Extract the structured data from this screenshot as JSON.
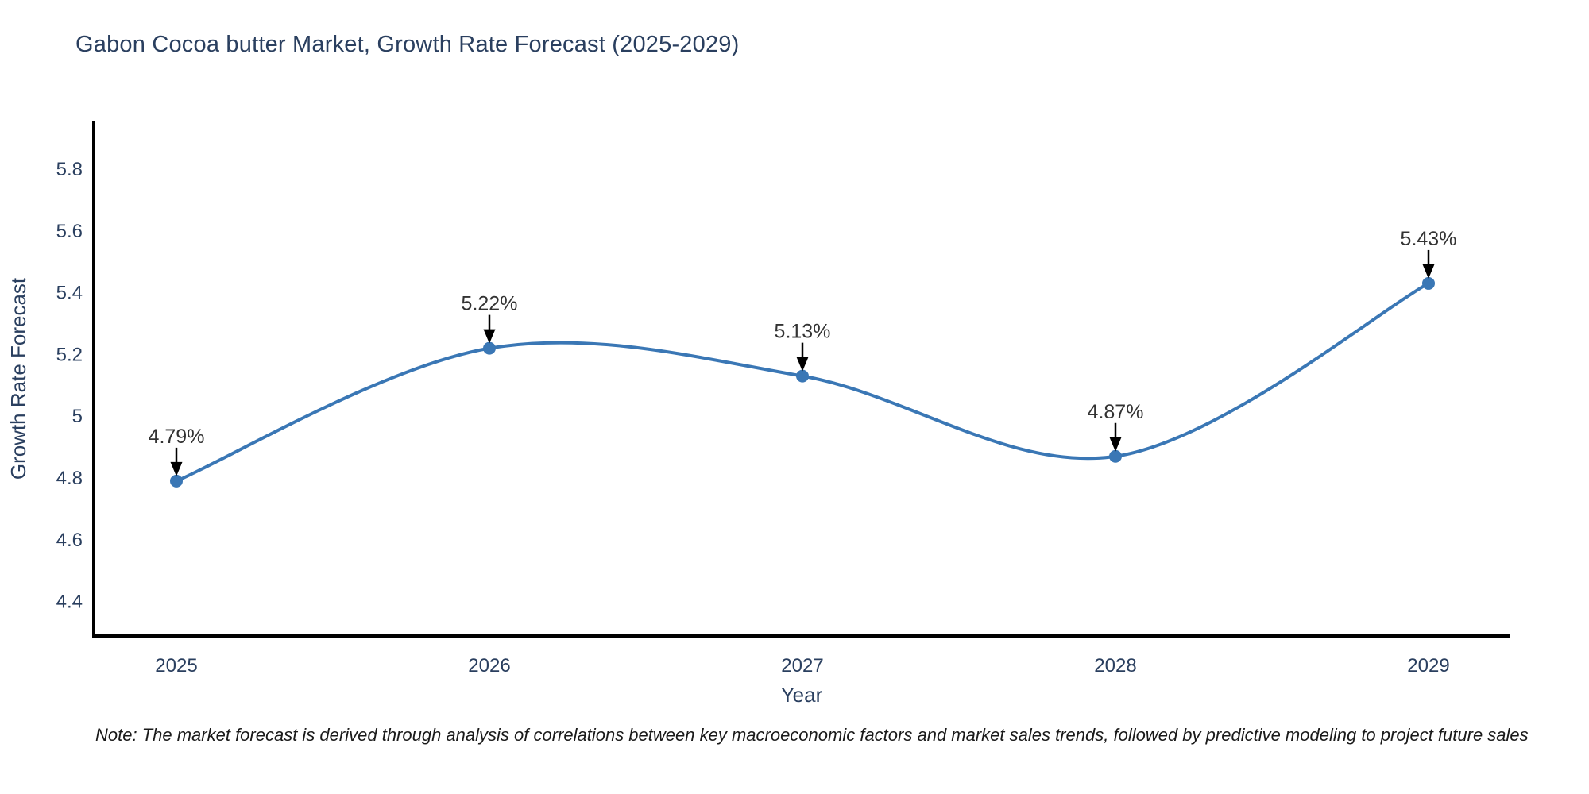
{
  "title": "Gabon Cocoa butter Market, Growth Rate Forecast (2025-2029)",
  "note": "Note: The market forecast is derived through analysis of correlations between key macroeconomic factors and market sales trends, followed by predictive modeling to project future sales",
  "chart_data": {
    "type": "line",
    "title": "Gabon Cocoa butter Market, Growth Rate Forecast (2025-2029)",
    "xlabel": "Year",
    "ylabel": "Growth Rate Forecast",
    "categories": [
      "2025",
      "2026",
      "2027",
      "2028",
      "2029"
    ],
    "series": [
      {
        "name": "Growth Rate Forecast",
        "values": [
          4.79,
          5.22,
          5.13,
          4.87,
          5.43
        ]
      }
    ],
    "point_labels": [
      "4.79%",
      "5.22%",
      "5.13%",
      "4.87%",
      "5.43%"
    ],
    "y_ticks": [
      4.4,
      4.6,
      4.8,
      5,
      5.2,
      5.4,
      5.6,
      5.8
    ],
    "y_tick_labels": [
      "4.4",
      "4.6",
      "4.8",
      "5",
      "5.2",
      "5.4",
      "5.6",
      "5.8"
    ],
    "ylim": [
      4.28,
      5.95
    ],
    "line_shape": "spline",
    "grid": false,
    "legend": "none",
    "colors": {
      "line": "#3a77b5",
      "marker": "#3a77b5",
      "axis_line": "#000000",
      "axis_text": "#2a3f5f",
      "annotation_text": "#333333",
      "annotation_arrow": "#000000"
    }
  }
}
